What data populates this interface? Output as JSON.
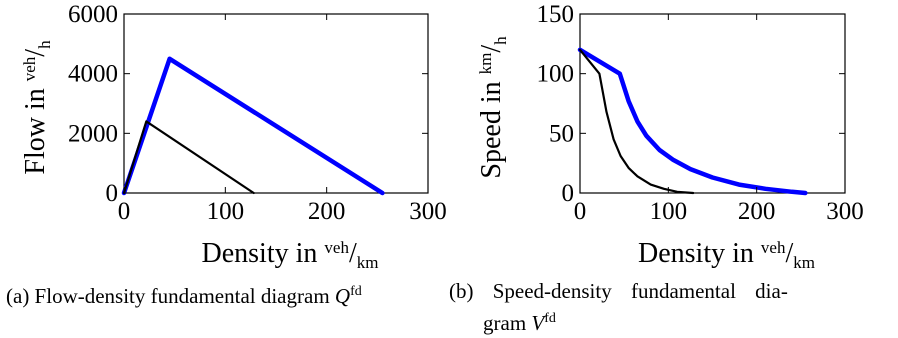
{
  "chart_data": [
    {
      "type": "line",
      "xlim": [
        0,
        300
      ],
      "ylim": [
        0,
        6000
      ],
      "xticks": [
        0,
        100,
        200,
        300
      ],
      "yticks": [
        0,
        2000,
        4000,
        6000
      ],
      "xlabel": "Density in",
      "xunit": {
        "num": "veh",
        "den": "km"
      },
      "ylabel": "Flow in",
      "yunit": {
        "num": "veh",
        "den": "h"
      },
      "grid": false,
      "series": [
        {
          "color": "#0000ff",
          "x": [
            0,
            45,
            255
          ],
          "y": [
            0,
            4500,
            0
          ]
        },
        {
          "color": "#000000",
          "x": [
            0,
            22,
            128
          ],
          "y": [
            0,
            2400,
            0
          ]
        }
      ],
      "caption": {
        "label": "(a) Flow-density fundamental diagram",
        "symbol": "Q",
        "superscript": "fd"
      }
    },
    {
      "type": "line",
      "xlim": [
        0,
        300
      ],
      "ylim": [
        0,
        150
      ],
      "xticks": [
        0,
        100,
        200,
        300
      ],
      "yticks": [
        0,
        50,
        100,
        150
      ],
      "xlabel": "Density in",
      "xunit": {
        "num": "veh",
        "den": "km"
      },
      "ylabel": "Speed in",
      "yunit": {
        "num": "km",
        "den": "h"
      },
      "grid": false,
      "series": [
        {
          "color": "#0000ff",
          "x": [
            0,
            45,
            55,
            65,
            75,
            90,
            105,
            125,
            150,
            180,
            210,
            240,
            255
          ],
          "y": [
            120,
            100,
            77,
            60,
            48,
            36,
            28,
            20,
            13,
            7,
            3.5,
            1,
            0
          ]
        },
        {
          "color": "#000000",
          "x": [
            0,
            22,
            30,
            38,
            46,
            55,
            65,
            80,
            95,
            110,
            128
          ],
          "y": [
            120,
            100,
            68,
            45,
            31,
            21,
            14,
            7,
            3.5,
            1,
            0
          ]
        }
      ],
      "caption": {
        "line1": "(b) Speed-density fundamental dia-",
        "line2": "gram",
        "symbol": "V",
        "superscript": "fd"
      }
    }
  ]
}
